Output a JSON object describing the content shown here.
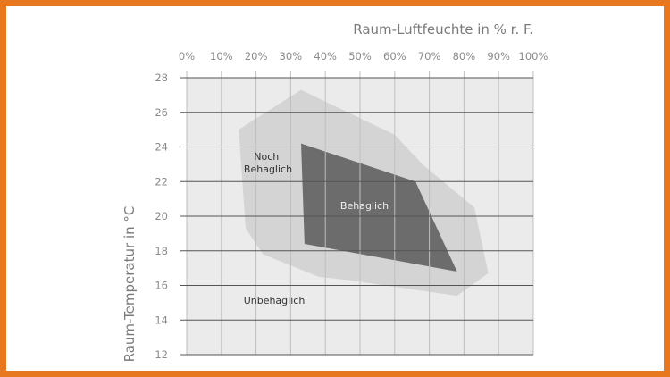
{
  "chart_data": {
    "type": "area",
    "xlabel": "Raum-Luftfeuchte in % r. F.",
    "ylabel": "Raum-Temperatur in °C",
    "xlim": [
      0,
      100
    ],
    "ylim": [
      12,
      28
    ],
    "x_ticks": [
      "0%",
      "10%",
      "20%",
      "30%",
      "40%",
      "50%",
      "60%",
      "70%",
      "80%",
      "90%",
      "100%"
    ],
    "y_ticks": [
      "12",
      "14",
      "16",
      "18",
      "20",
      "22",
      "24",
      "26",
      "28"
    ],
    "x_axis_position": "top",
    "grid": true,
    "regions": [
      {
        "label": "Noch\nBehaglich",
        "color": "#d4d4d4",
        "points": [
          [
            15,
            25
          ],
          [
            33,
            27.3
          ],
          [
            60,
            24.7
          ],
          [
            68,
            23
          ],
          [
            83,
            20.5
          ],
          [
            87,
            16.7
          ],
          [
            78,
            15.4
          ],
          [
            47,
            16.3
          ],
          [
            38,
            16.5
          ],
          [
            22,
            17.8
          ],
          [
            17,
            19.3
          ],
          [
            15,
            25
          ]
        ]
      },
      {
        "label": "Behaglich",
        "color": "#6c6c6c",
        "points": [
          [
            33,
            24.2
          ],
          [
            66,
            22
          ],
          [
            78,
            16.8
          ],
          [
            34,
            18.4
          ],
          [
            33,
            24.2
          ]
        ]
      }
    ],
    "outer_label": "Unbehaglich"
  }
}
